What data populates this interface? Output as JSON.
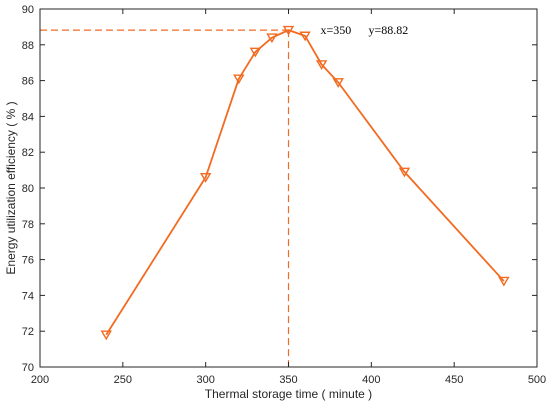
{
  "chart_data": {
    "type": "line",
    "xlabel": "Thermal storage time ( minute )",
    "ylabel": "Energy utilization efficiency ( % )",
    "xlim": [
      200,
      500
    ],
    "ylim": [
      70,
      90
    ],
    "xticks": [
      200,
      250,
      300,
      350,
      400,
      450,
      500
    ],
    "yticks": [
      70,
      72,
      74,
      76,
      78,
      80,
      82,
      84,
      86,
      88,
      90
    ],
    "grid": false,
    "series": [
      {
        "color": "#f26b21",
        "marker": "down-triangle",
        "points": [
          {
            "x": 240,
            "y": 71.8
          },
          {
            "x": 300,
            "y": 80.6
          },
          {
            "x": 320,
            "y": 86.1
          },
          {
            "x": 330,
            "y": 87.6
          },
          {
            "x": 340,
            "y": 88.4
          },
          {
            "x": 350,
            "y": 88.82
          },
          {
            "x": 360,
            "y": 88.5
          },
          {
            "x": 370,
            "y": 86.9
          },
          {
            "x": 380,
            "y": 85.9
          },
          {
            "x": 420,
            "y": 80.9
          },
          {
            "x": 480,
            "y": 74.8
          }
        ]
      }
    ],
    "annotation": {
      "x": 350,
      "y": 88.82,
      "x_text": "x=350",
      "y_text": "y=88.82",
      "style": "dashed guide lines to both axes"
    }
  }
}
